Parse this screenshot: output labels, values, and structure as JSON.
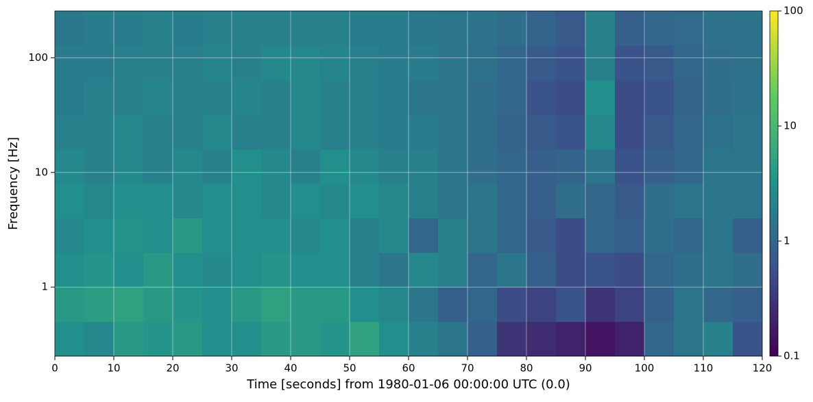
{
  "chart_data": {
    "type": "heatmap",
    "xlabel": "Time [seconds] from 1980-01-06 00:00:00 UTC (0.0)",
    "ylabel": "Frequency [Hz]",
    "x": [
      0,
      5,
      10,
      15,
      20,
      25,
      30,
      35,
      40,
      45,
      50,
      55,
      60,
      65,
      70,
      75,
      80,
      85,
      90,
      95,
      100,
      105,
      110,
      115,
      120
    ],
    "y": [
      0.25,
      0.5,
      1,
      2,
      4,
      8,
      16,
      32,
      64,
      128,
      256
    ],
    "values": [
      [
        3,
        2.5,
        4,
        3.5,
        4,
        3,
        3,
        4,
        4,
        3.5,
        5,
        3,
        2,
        1.5,
        0.8,
        0.3,
        0.25,
        0.2,
        0.15,
        0.2,
        1,
        1.5,
        2,
        0.6
      ],
      [
        4,
        4.5,
        5,
        4,
        3.5,
        3,
        4,
        5,
        4,
        4,
        3,
        2.5,
        1.5,
        0.8,
        1,
        0.5,
        0.4,
        0.6,
        0.3,
        0.4,
        0.8,
        1.5,
        1,
        0.8
      ],
      [
        3,
        3.5,
        3,
        4,
        3,
        2.5,
        3,
        3.5,
        3,
        3,
        2,
        1.5,
        2.5,
        2,
        1,
        1.5,
        0.8,
        0.5,
        0.6,
        0.5,
        1,
        1.2,
        1.5,
        1.2
      ],
      [
        2.5,
        3,
        3.5,
        3,
        4,
        3,
        3,
        3,
        2.5,
        3,
        2,
        2.5,
        1,
        2,
        1.5,
        1,
        0.7,
        0.5,
        1,
        0.8,
        1.2,
        1,
        1.5,
        0.8
      ],
      [
        3,
        2.5,
        3,
        3,
        2.5,
        3,
        3,
        2.5,
        3,
        2.5,
        3,
        2.5,
        2,
        1.5,
        1.5,
        1,
        0.8,
        1.2,
        1,
        0.7,
        1.2,
        1.5,
        1.5,
        1.5
      ],
      [
        2.5,
        2,
        2.5,
        2,
        2.5,
        2,
        3,
        2.5,
        2,
        3,
        2.5,
        2,
        2,
        1.5,
        1.2,
        1,
        0.8,
        0.9,
        1.5,
        0.6,
        0.8,
        1,
        1.5,
        1.5
      ],
      [
        2,
        2,
        2.5,
        2,
        2,
        2.5,
        2,
        2,
        2.5,
        2,
        2,
        1.8,
        1.8,
        1.5,
        1.2,
        0.9,
        0.7,
        0.6,
        2.5,
        0.5,
        0.7,
        1,
        1.3,
        1.5
      ],
      [
        1.8,
        2,
        2,
        2.2,
        2,
        2,
        2.2,
        2,
        2.5,
        2,
        2,
        1.8,
        1.5,
        1.5,
        1.2,
        1,
        0.6,
        0.5,
        3,
        0.5,
        0.6,
        0.9,
        1.2,
        1.4
      ],
      [
        1.8,
        1.8,
        2,
        2,
        2,
        2.2,
        2,
        2.5,
        2.5,
        2.2,
        2,
        1.8,
        1.8,
        1.5,
        1.3,
        1,
        0.7,
        0.6,
        2,
        0.6,
        0.7,
        1,
        1.2,
        1.3
      ],
      [
        1.6,
        1.8,
        1.8,
        2,
        1.8,
        2,
        2,
        2,
        2,
        2,
        1.8,
        1.8,
        1.6,
        1.5,
        1.4,
        1.2,
        0.9,
        0.7,
        2,
        0.8,
        1,
        1.1,
        1.3,
        1.4
      ]
    ],
    "xlim": [
      0,
      120
    ],
    "xticks": [
      0,
      10,
      20,
      30,
      40,
      50,
      60,
      70,
      80,
      90,
      100,
      110,
      120
    ],
    "ylim": [
      0.25,
      256
    ],
    "yticks": [
      1,
      10,
      100
    ],
    "yscale": "log",
    "clim": [
      0.1,
      100
    ],
    "cticks": [
      0.1,
      1,
      10,
      100
    ],
    "cscale": "log",
    "colormap": "viridis",
    "grid": true
  }
}
